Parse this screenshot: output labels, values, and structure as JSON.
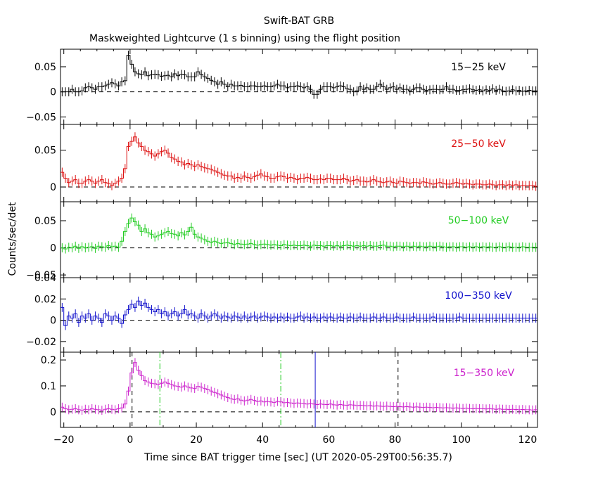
{
  "title": "Swift-BAT GRB",
  "subtitle": "Maskweighted Lightcurve (1 s binning) using the flight position",
  "xlabel": "Time since BAT trigger time [sec] (UT 2020-05-29T00:56:35.7)",
  "ylabel": "Counts/sec/det",
  "xlim": [
    -21,
    123
  ],
  "xticks": [
    -20,
    0,
    20,
    40,
    60,
    80,
    100,
    120
  ],
  "xtick_labels": [
    "−20",
    "0",
    "20",
    "40",
    "60",
    "80",
    "100",
    "120"
  ],
  "chart_data": [
    {
      "type": "line",
      "name": "15−25 keV",
      "color": "#000000",
      "ylim": [
        -0.065,
        0.085
      ],
      "yticks": [
        -0.05,
        0,
        0.05
      ],
      "ytick_labels": [
        "−0.05",
        "0",
        "0.05"
      ],
      "x_start": -21,
      "x_step": 1,
      "values": [
        0.0,
        0.0,
        0.0,
        0.005,
        0.0,
        0.0,
        0.002,
        0.008,
        0.01,
        0.008,
        0.005,
        0.01,
        0.01,
        0.012,
        0.015,
        0.018,
        0.016,
        0.012,
        0.02,
        0.022,
        0.073,
        0.055,
        0.04,
        0.036,
        0.034,
        0.04,
        0.032,
        0.034,
        0.035,
        0.034,
        0.031,
        0.032,
        0.033,
        0.03,
        0.036,
        0.032,
        0.035,
        0.034,
        0.03,
        0.03,
        0.03,
        0.04,
        0.035,
        0.03,
        0.027,
        0.023,
        0.02,
        0.015,
        0.02,
        0.015,
        0.01,
        0.015,
        0.012,
        0.012,
        0.013,
        0.01,
        0.01,
        0.012,
        0.012,
        0.01,
        0.01,
        0.012,
        0.01,
        0.01,
        0.012,
        0.015,
        0.012,
        0.012,
        0.008,
        0.01,
        0.01,
        0.012,
        0.01,
        0.008,
        0.01,
        0.005,
        -0.005,
        -0.005,
        0.005,
        0.01,
        0.01,
        0.01,
        0.008,
        0.01,
        0.012,
        0.01,
        0.006,
        0.005,
        0.0,
        0.002,
        0.01,
        0.005,
        0.008,
        0.005,
        0.005,
        0.01,
        0.015,
        0.01,
        0.005,
        0.008,
        0.01,
        0.005,
        0.008,
        0.005,
        0.005,
        0.002,
        0.005,
        0.008,
        0.008,
        0.005,
        0.003,
        0.004,
        0.005,
        0.005,
        0.004,
        0.005,
        0.01,
        0.005,
        0.005,
        0.003,
        0.003,
        0.004,
        0.005,
        0.006,
        0.004,
        0.003,
        0.004,
        0.002,
        0.004,
        0.003,
        0.006,
        0.003,
        0.005,
        0.002,
        0.001,
        0.002,
        0.004,
        0.002,
        0.003,
        0.001,
        0.002,
        0.003,
        0.002,
        0.002
      ]
    },
    {
      "type": "line",
      "name": "25−50 keV",
      "color": "#dd1111",
      "ylim": [
        -0.02,
        0.085
      ],
      "yticks": [
        0,
        0.05
      ],
      "ytick_labels": [
        "0",
        "0.05"
      ],
      "x_start": -21,
      "x_step": 1,
      "values": [
        0.02,
        0.012,
        0.006,
        0.008,
        0.01,
        0.005,
        0.005,
        0.008,
        0.01,
        0.008,
        0.005,
        0.008,
        0.01,
        0.006,
        0.005,
        0.002,
        0.005,
        0.008,
        0.012,
        0.025,
        0.055,
        0.062,
        0.068,
        0.06,
        0.055,
        0.05,
        0.048,
        0.045,
        0.042,
        0.045,
        0.048,
        0.05,
        0.046,
        0.04,
        0.038,
        0.035,
        0.034,
        0.03,
        0.032,
        0.03,
        0.028,
        0.03,
        0.028,
        0.026,
        0.025,
        0.024,
        0.022,
        0.02,
        0.018,
        0.016,
        0.015,
        0.015,
        0.012,
        0.013,
        0.012,
        0.015,
        0.013,
        0.012,
        0.014,
        0.016,
        0.018,
        0.015,
        0.014,
        0.012,
        0.012,
        0.014,
        0.015,
        0.014,
        0.012,
        0.013,
        0.012,
        0.01,
        0.012,
        0.012,
        0.013,
        0.012,
        0.01,
        0.01,
        0.011,
        0.01,
        0.012,
        0.012,
        0.01,
        0.01,
        0.01,
        0.012,
        0.01,
        0.008,
        0.009,
        0.01,
        0.008,
        0.008,
        0.007,
        0.008,
        0.01,
        0.008,
        0.007,
        0.006,
        0.007,
        0.008,
        0.006,
        0.005,
        0.008,
        0.007,
        0.006,
        0.005,
        0.006,
        0.006,
        0.005,
        0.007,
        0.006,
        0.005,
        0.004,
        0.005,
        0.006,
        0.005,
        0.004,
        0.004,
        0.005,
        0.006,
        0.005,
        0.004,
        0.005,
        0.004,
        0.003,
        0.004,
        0.004,
        0.003,
        0.003,
        0.004,
        0.003,
        0.002,
        0.003,
        0.003,
        0.002,
        0.003,
        0.002,
        0.003,
        0.002,
        0.002,
        0.002,
        0.002,
        0.002,
        0.001
      ]
    },
    {
      "type": "line",
      "name": "50−100 keV",
      "color": "#22cc22",
      "ylim": [
        -0.055,
        0.085
      ],
      "yticks": [
        -0.05,
        0,
        0.05
      ],
      "ytick_labels": [
        "−0.05",
        "0",
        "0.05"
      ],
      "x_start": -21,
      "x_step": 1,
      "values": [
        0.0,
        -0.002,
        0.001,
        0.0,
        0.003,
        -0.001,
        0.002,
        0.0,
        0.001,
        0.002,
        -0.001,
        0.003,
        0.002,
        0.001,
        0.004,
        0.002,
        0.003,
        0.001,
        0.012,
        0.03,
        0.045,
        0.055,
        0.048,
        0.042,
        0.03,
        0.035,
        0.028,
        0.025,
        0.02,
        0.022,
        0.025,
        0.028,
        0.03,
        0.026,
        0.025,
        0.022,
        0.028,
        0.024,
        0.03,
        0.038,
        0.025,
        0.02,
        0.018,
        0.015,
        0.012,
        0.01,
        0.012,
        0.01,
        0.008,
        0.009,
        0.01,
        0.008,
        0.006,
        0.008,
        0.007,
        0.006,
        0.007,
        0.008,
        0.006,
        0.005,
        0.006,
        0.007,
        0.006,
        0.005,
        0.006,
        0.005,
        0.004,
        0.006,
        0.005,
        0.004,
        0.005,
        0.004,
        0.004,
        0.005,
        0.004,
        0.003,
        0.005,
        0.004,
        0.004,
        0.003,
        0.004,
        0.004,
        0.003,
        0.004,
        0.003,
        0.004,
        0.005,
        0.004,
        0.003,
        0.004,
        0.003,
        0.004,
        0.003,
        0.004,
        0.003,
        0.003,
        0.004,
        0.005,
        0.003,
        0.003,
        0.002,
        0.003,
        0.003,
        0.002,
        0.003,
        0.002,
        0.003,
        0.002,
        0.003,
        0.002,
        0.002,
        0.003,
        0.002,
        0.002,
        0.003,
        0.002,
        0.001,
        0.002,
        0.002,
        0.001,
        0.002,
        0.002,
        0.001,
        0.002,
        0.001,
        0.002,
        0.001,
        0.002,
        0.001,
        0.002,
        0.001,
        0.001,
        0.002,
        0.001,
        0.001,
        0.002,
        0.001,
        0.001,
        0.001,
        0.002,
        0.001,
        0.001,
        0.001,
        0.001
      ]
    },
    {
      "type": "line",
      "name": "100−350 keV",
      "color": "#1111cc",
      "ylim": [
        -0.03,
        0.04
      ],
      "yticks": [
        -0.02,
        0,
        0.02,
        0.04
      ],
      "ytick_labels": [
        "−0.02",
        "0",
        "0.02",
        "0.04"
      ],
      "x_start": -21,
      "x_step": 1,
      "values": [
        0.012,
        -0.005,
        0.004,
        0.002,
        0.006,
        -0.002,
        0.004,
        0.002,
        0.006,
        0.0,
        0.004,
        0.002,
        -0.002,
        0.006,
        0.004,
        0.0,
        0.004,
        0.002,
        -0.003,
        0.005,
        0.01,
        0.015,
        0.012,
        0.018,
        0.014,
        0.016,
        0.012,
        0.01,
        0.008,
        0.01,
        0.006,
        0.008,
        0.004,
        0.006,
        0.008,
        0.004,
        0.006,
        0.01,
        0.005,
        0.006,
        0.004,
        0.002,
        0.006,
        0.004,
        0.002,
        0.004,
        0.006,
        0.004,
        0.002,
        0.004,
        0.003,
        0.002,
        0.004,
        0.003,
        0.002,
        0.004,
        0.002,
        0.003,
        0.004,
        0.002,
        0.003,
        0.004,
        0.003,
        0.002,
        0.003,
        0.002,
        0.003,
        0.002,
        0.003,
        0.002,
        0.002,
        0.003,
        0.004,
        0.002,
        0.003,
        0.002,
        0.003,
        0.002,
        0.002,
        0.003,
        0.002,
        0.003,
        0.002,
        0.002,
        0.003,
        0.002,
        0.002,
        0.003,
        0.002,
        0.002,
        0.003,
        0.002,
        0.002,
        0.002,
        0.003,
        0.002,
        0.002,
        0.003,
        0.002,
        0.002,
        0.002,
        0.003,
        0.002,
        0.002,
        0.002,
        0.002,
        0.003,
        0.002,
        0.002,
        0.002,
        0.002,
        0.002,
        0.003,
        0.002,
        0.002,
        0.002,
        0.002,
        0.002,
        0.002,
        0.002,
        0.003,
        0.002,
        0.002,
        0.002,
        0.002,
        0.002,
        0.002,
        0.002,
        0.002,
        0.002,
        0.002,
        0.002,
        0.002,
        0.002,
        0.002,
        0.002,
        0.002,
        0.002,
        0.002,
        0.002,
        0.002,
        0.002,
        0.002,
        0.002
      ]
    },
    {
      "type": "line",
      "name": "15−350 keV",
      "color": "#cc22cc",
      "ylim": [
        -0.06,
        0.23
      ],
      "yticks": [
        0,
        0.1,
        0.2
      ],
      "ytick_labels": [
        "0",
        "0.1",
        "0.2"
      ],
      "x_start": -21,
      "x_step": 1,
      "values": [
        0.018,
        0.012,
        0.008,
        0.01,
        0.012,
        0.008,
        0.006,
        0.01,
        0.008,
        0.012,
        0.01,
        0.008,
        0.006,
        0.01,
        0.012,
        0.01,
        0.008,
        0.012,
        0.015,
        0.03,
        0.08,
        0.15,
        0.19,
        0.16,
        0.14,
        0.12,
        0.115,
        0.11,
        0.108,
        0.105,
        0.11,
        0.115,
        0.11,
        0.105,
        0.1,
        0.098,
        0.095,
        0.1,
        0.095,
        0.092,
        0.09,
        0.098,
        0.095,
        0.09,
        0.085,
        0.08,
        0.075,
        0.07,
        0.065,
        0.06,
        0.055,
        0.05,
        0.048,
        0.05,
        0.045,
        0.042,
        0.045,
        0.048,
        0.044,
        0.04,
        0.042,
        0.038,
        0.04,
        0.038,
        0.036,
        0.04,
        0.038,
        0.035,
        0.036,
        0.034,
        0.032,
        0.034,
        0.033,
        0.032,
        0.03,
        0.032,
        0.03,
        0.028,
        0.03,
        0.029,
        0.028,
        0.03,
        0.027,
        0.026,
        0.028,
        0.026,
        0.025,
        0.027,
        0.026,
        0.024,
        0.025,
        0.024,
        0.023,
        0.024,
        0.022,
        0.023,
        0.022,
        0.021,
        0.022,
        0.021,
        0.02,
        0.021,
        0.02,
        0.019,
        0.02,
        0.019,
        0.018,
        0.019,
        0.018,
        0.017,
        0.018,
        0.017,
        0.016,
        0.017,
        0.016,
        0.015,
        0.016,
        0.015,
        0.014,
        0.015,
        0.014,
        0.013,
        0.014,
        0.013,
        0.012,
        0.013,
        0.012,
        0.012,
        0.011,
        0.012,
        0.011,
        0.01,
        0.011,
        0.01,
        0.01,
        0.009,
        0.01,
        0.009,
        0.008,
        0.009,
        0.008,
        0.008,
        0.007,
        0.008
      ],
      "vlines": [
        {
          "x": 0.6,
          "style": "dashed",
          "color": "#000000"
        },
        {
          "x": 9.0,
          "style": "dashdot",
          "color": "#22cc22"
        },
        {
          "x": 45.5,
          "style": "dashdot",
          "color": "#22cc22"
        },
        {
          "x": 55.9,
          "style": "solid",
          "color": "#1111cc"
        },
        {
          "x": 80.9,
          "style": "dashed",
          "color": "#000000"
        }
      ]
    }
  ]
}
